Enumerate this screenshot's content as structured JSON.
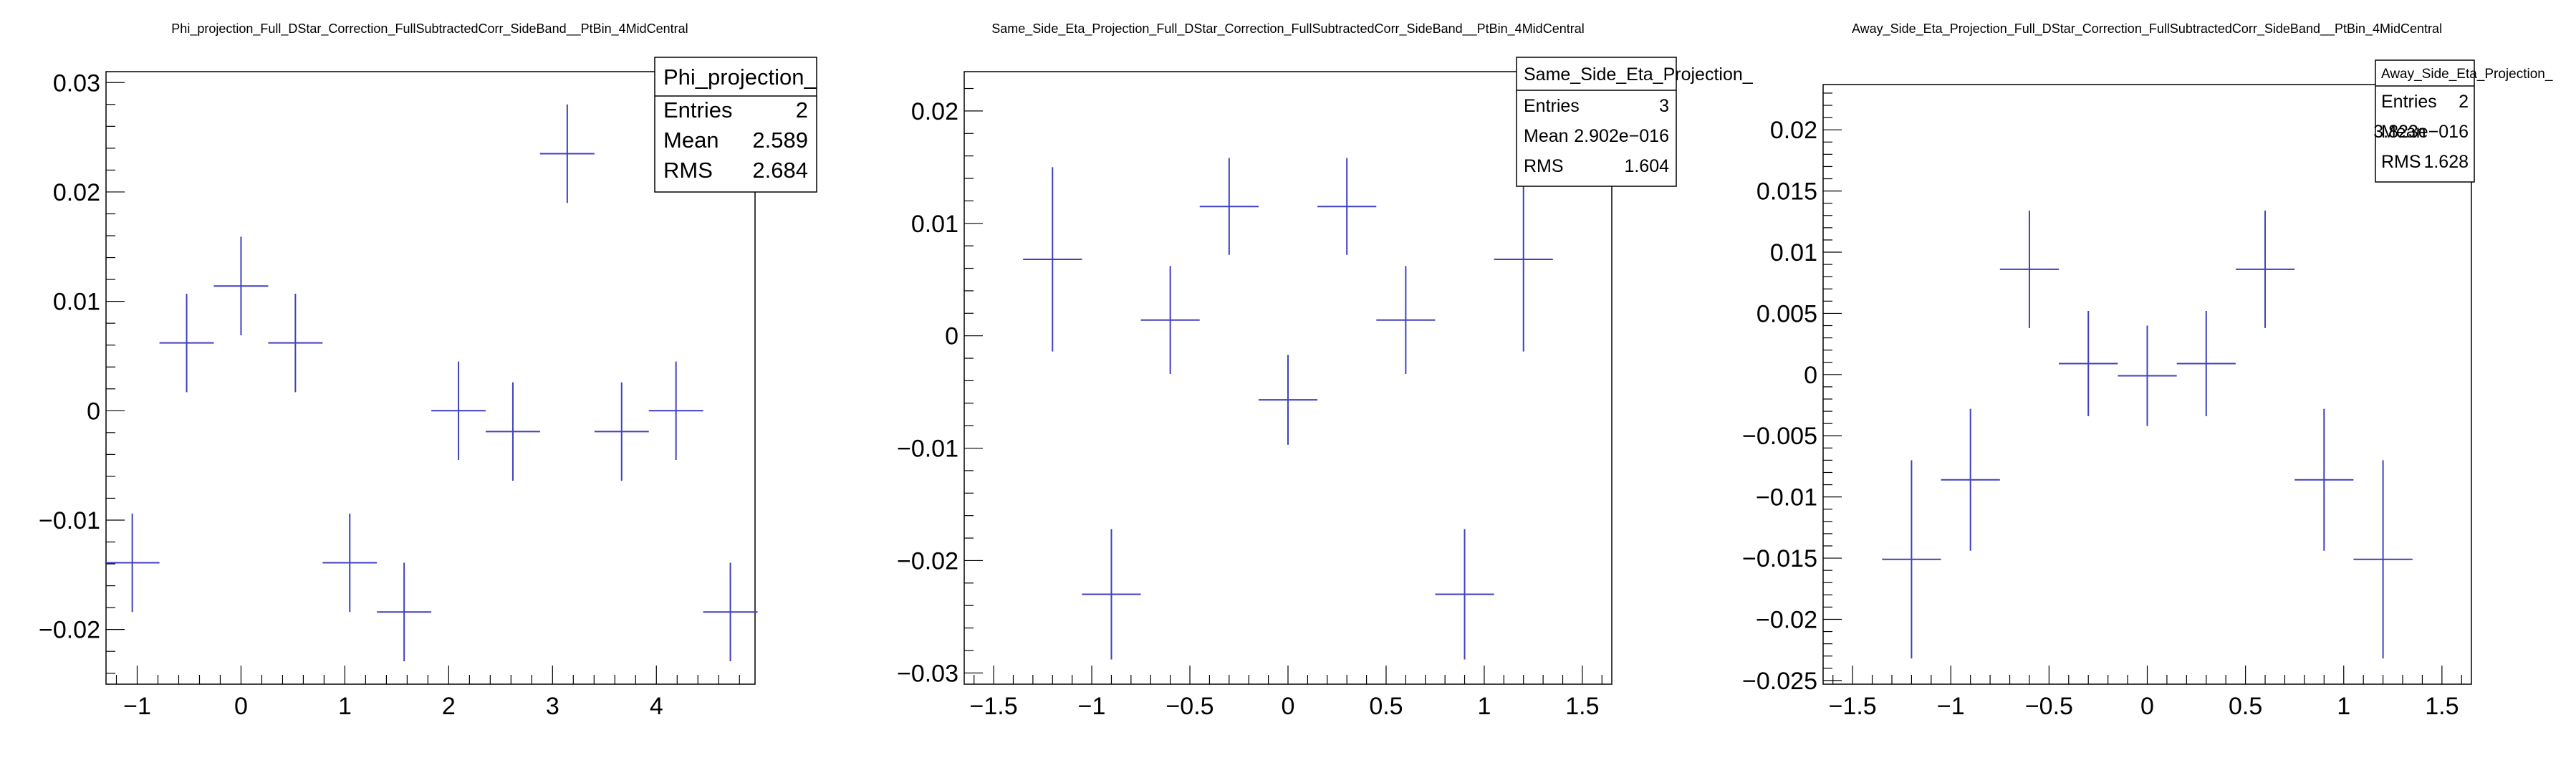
{
  "chart_data": [
    {
      "type": "scatter",
      "title": "Phi_projection_Full_DStar_Correction_FullSubtractedCorr_SideBand__PtBin_4MidCentral",
      "xlabel": "",
      "ylabel": "",
      "xlim": [
        -1.3,
        4.95
      ],
      "ylim": [
        -0.025,
        0.031
      ],
      "x_ticks": [
        -1,
        0,
        1,
        2,
        3,
        4
      ],
      "x_tick_labels": [
        "−1",
        "0",
        "1",
        "2",
        "3",
        "4"
      ],
      "y_ticks": [
        -0.02,
        -0.01,
        0,
        0.01,
        0.02,
        0.03
      ],
      "y_tick_labels": [
        "−0.02",
        "−0.01",
        "0",
        "0.01",
        "0.02",
        "0.03"
      ],
      "grid": false,
      "legend": "none",
      "color": "#4040c0",
      "series": [
        {
          "x": [
            -1.0472,
            -0.5236,
            0.0,
            0.5236,
            1.0472,
            1.5708,
            2.0944,
            2.618,
            3.1416,
            3.6652,
            4.1888,
            4.7124
          ],
          "y": [
            -0.0139,
            0.0062,
            0.0114,
            0.0062,
            -0.0139,
            -0.0184,
            0.0,
            -0.0019,
            0.0235,
            -0.0019,
            0.0,
            -0.0184
          ],
          "xerr": [
            0.2618,
            0.2618,
            0.2618,
            0.2618,
            0.2618,
            0.2618,
            0.2618,
            0.2618,
            0.2618,
            0.2618,
            0.2618,
            0.2618
          ],
          "yerr": [
            0.0045,
            0.0045,
            0.0045,
            0.0045,
            0.0045,
            0.0045,
            0.0045,
            0.0045,
            0.0045,
            0.0045,
            0.0045,
            0.0045
          ]
        }
      ],
      "stats": {
        "name": "Phi_projection_",
        "rows": [
          {
            "label": "Entries",
            "value": "2"
          },
          {
            "label": "Mean",
            "value": "2.589"
          },
          {
            "label": "RMS",
            "value": "2.684"
          }
        ]
      }
    },
    {
      "type": "scatter",
      "title": "Same_Side_Eta_Projection_Full_DStar_Correction_FullSubtractedCorr_SideBand__PtBin_4MidCentral",
      "xlabel": "",
      "ylabel": "",
      "xlim": [
        -1.65,
        1.65
      ],
      "ylim": [
        -0.031,
        0.0235
      ],
      "x_ticks": [
        -1.5,
        -1,
        -0.5,
        0,
        0.5,
        1,
        1.5
      ],
      "x_tick_labels": [
        "−1.5",
        "−1",
        "−0.5",
        "0",
        "0.5",
        "1",
        "1.5"
      ],
      "y_ticks": [
        -0.03,
        -0.02,
        -0.01,
        0,
        0.01,
        0.02
      ],
      "y_tick_labels": [
        "−0.03",
        "−0.02",
        "−0.01",
        "0",
        "0.01",
        "0.02"
      ],
      "grid": false,
      "legend": "none",
      "color": "#4040c0",
      "series": [
        {
          "x": [
            -1.2,
            -0.9,
            -0.6,
            -0.3,
            0.0,
            0.3,
            0.6,
            0.9,
            1.2
          ],
          "y": [
            0.0068,
            -0.023,
            0.0014,
            0.0115,
            -0.0057,
            0.0115,
            0.0014,
            -0.023,
            0.0068
          ],
          "xerr": [
            0.15,
            0.15,
            0.15,
            0.15,
            0.15,
            0.15,
            0.15,
            0.15,
            0.15
          ],
          "yerr": [
            0.0082,
            0.0058,
            0.0048,
            0.0043,
            0.004,
            0.0043,
            0.0048,
            0.0058,
            0.0082
          ]
        }
      ],
      "stats": {
        "name": "Same_Side_Eta_Projection_",
        "rows": [
          {
            "label": "Entries",
            "value": "3"
          },
          {
            "label": "Mean",
            "value": "2.902e−016"
          },
          {
            "label": "RMS",
            "value": "1.604"
          }
        ]
      }
    },
    {
      "type": "scatter",
      "title": "Away_Side_Eta_Projection_Full_DStar_Correction_FullSubtractedCorr_SideBand__PtBin_4MidCentral",
      "xlabel": "",
      "ylabel": "",
      "xlim": [
        -1.65,
        1.65
      ],
      "ylim": [
        -0.0253,
        0.0237
      ],
      "x_ticks": [
        -1.5,
        -1,
        -0.5,
        0,
        0.5,
        1,
        1.5
      ],
      "x_tick_labels": [
        "−1.5",
        "−1",
        "−0.5",
        "0",
        "0.5",
        "1",
        "1.5"
      ],
      "y_ticks": [
        -0.025,
        -0.02,
        -0.015,
        -0.01,
        -0.005,
        0,
        0.005,
        0.01,
        0.015,
        0.02
      ],
      "y_tick_labels": [
        "−0.025",
        "−0.02",
        "−0.015",
        "−0.01",
        "−0.005",
        "0",
        "0.005",
        "0.01",
        "0.015",
        "0.02"
      ],
      "grid": false,
      "legend": "none",
      "color": "#4040c0",
      "series": [
        {
          "x": [
            -1.2,
            -0.9,
            -0.6,
            -0.3,
            0.0,
            0.3,
            0.6,
            0.9,
            1.2
          ],
          "y": [
            -0.0151,
            -0.0086,
            0.0086,
            0.0009,
            -0.0001,
            0.0009,
            0.0086,
            -0.0086,
            -0.0151
          ],
          "xerr": [
            0.15,
            0.15,
            0.15,
            0.15,
            0.15,
            0.15,
            0.15,
            0.15,
            0.15
          ],
          "yerr": [
            0.0081,
            0.0058,
            0.0048,
            0.0043,
            0.0041,
            0.0043,
            0.0048,
            0.0058,
            0.0081
          ]
        }
      ],
      "stats": {
        "name": "Away_Side_Eta_Projection_",
        "rows": [
          {
            "label": "Entries",
            "value": "2"
          },
          {
            "label": "Mean",
            "value": "3.823e−016"
          },
          {
            "label": "RMS",
            "value": "1.628"
          }
        ]
      }
    }
  ]
}
